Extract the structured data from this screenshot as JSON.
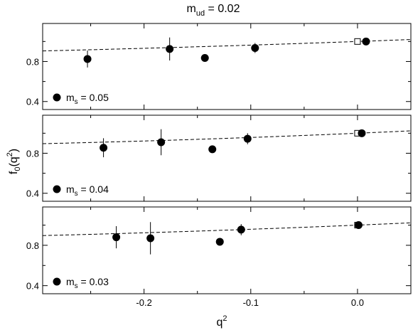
{
  "chart_data": {
    "type": "scatter",
    "title": "m_ud = 0.02",
    "title_main": "m",
    "title_sub": "ud",
    "title_rest": " = 0.02",
    "xlabel_main": "q",
    "xlabel_sup": "2",
    "ylabel_pre": "f",
    "ylabel_sub": "0",
    "ylabel_mid": "(q",
    "ylabel_sup": "2",
    "ylabel_post": ")",
    "xlim": [
      -0.295,
      0.05
    ],
    "x_ticks": [
      -0.2,
      -0.1,
      0.0
    ],
    "x_tick_labels": [
      "-0.2",
      "-0.1",
      "0.0"
    ],
    "ylim": [
      0.32,
      1.18
    ],
    "y_ticks": [
      0.4,
      0.8
    ],
    "y_tick_labels": [
      "0.4",
      "0.8"
    ],
    "grid": false,
    "panels": [
      {
        "legend_main": "m",
        "legend_sub": "s",
        "legend_rest": " = 0.05",
        "points": [
          {
            "x": -0.253,
            "y": 0.825,
            "err": 0.085
          },
          {
            "x": -0.176,
            "y": 0.925,
            "err": 0.115
          },
          {
            "x": -0.143,
            "y": 0.835,
            "err": 0.0
          },
          {
            "x": -0.096,
            "y": 0.935,
            "err": 0.05
          },
          {
            "x": 0.008,
            "y": 1.0,
            "err": 0.0
          }
        ],
        "open_points": [
          {
            "x": 0.0,
            "y": 1.0
          }
        ],
        "fit": {
          "a": 0.385,
          "b": 0.22
        }
      },
      {
        "legend_main": "m",
        "legend_sub": "s",
        "legend_rest": " = 0.04",
        "points": [
          {
            "x": -0.238,
            "y": 0.855,
            "err": 0.095
          },
          {
            "x": -0.184,
            "y": 0.91,
            "err": 0.13
          },
          {
            "x": -0.136,
            "y": 0.84,
            "err": 0.0
          },
          {
            "x": -0.103,
            "y": 0.945,
            "err": 0.055
          },
          {
            "x": 0.004,
            "y": 1.0,
            "err": 0.0
          }
        ],
        "open_points": [
          {
            "x": 0.0,
            "y": 1.0
          }
        ],
        "fit": {
          "a": 0.46,
          "b": 0.36
        }
      },
      {
        "legend_main": "m",
        "legend_sub": "s",
        "legend_rest": " = 0.03",
        "points": [
          {
            "x": -0.226,
            "y": 0.88,
            "err": 0.11
          },
          {
            "x": -0.194,
            "y": 0.87,
            "err": 0.16
          },
          {
            "x": -0.129,
            "y": 0.835,
            "err": 0.0
          },
          {
            "x": -0.109,
            "y": 0.955,
            "err": 0.055
          },
          {
            "x": 0.001,
            "y": 1.0,
            "err": 0.0
          }
        ],
        "open_points": [
          {
            "x": 0.0,
            "y": 1.0
          }
        ],
        "fit": {
          "a": 0.44,
          "b": 0.3
        }
      }
    ]
  }
}
